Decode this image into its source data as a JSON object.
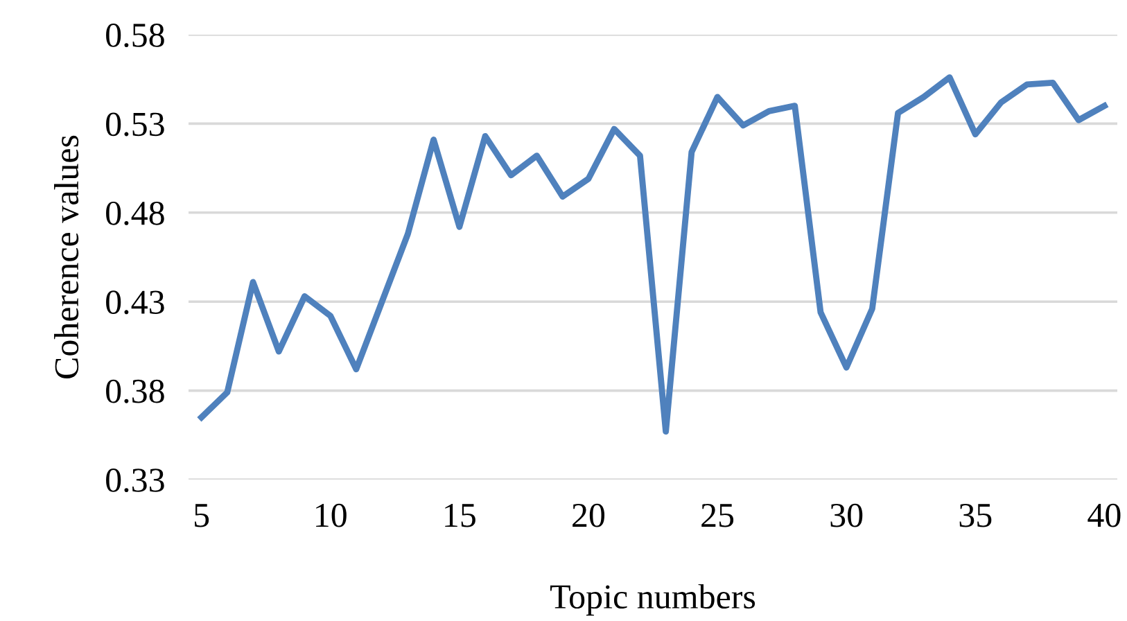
{
  "chart_data": {
    "type": "line",
    "xlabel": "Topic numbers",
    "ylabel": "Coherence values",
    "x": [
      5,
      6,
      7,
      8,
      9,
      10,
      11,
      12,
      13,
      14,
      15,
      16,
      17,
      18,
      19,
      20,
      21,
      22,
      23,
      24,
      25,
      26,
      27,
      28,
      29,
      30,
      31,
      32,
      33,
      34,
      35,
      36,
      37,
      38,
      39,
      40
    ],
    "series": [
      {
        "color": "#4f81bd",
        "values": [
          0.365,
          0.379,
          0.441,
          0.402,
          0.433,
          0.422,
          0.392,
          0.43,
          0.468,
          0.521,
          0.472,
          0.523,
          0.501,
          0.512,
          0.489,
          0.499,
          0.527,
          0.512,
          0.357,
          0.514,
          0.545,
          0.529,
          0.537,
          0.54,
          0.424,
          0.393,
          0.426,
          0.536,
          0.545,
          0.556,
          0.524,
          0.542,
          0.552,
          0.553,
          0.532,
          0.54
        ]
      }
    ],
    "xlim": [
      4.5,
      40.5
    ],
    "xticks": [
      5,
      10,
      15,
      20,
      25,
      30,
      35,
      40
    ],
    "ylim": [
      0.33,
      0.58
    ],
    "yticks": [
      {
        "value": 0.33,
        "label": "0.33"
      },
      {
        "value": 0.38,
        "label": "0.38"
      },
      {
        "value": 0.43,
        "label": "0.43"
      },
      {
        "value": 0.48,
        "label": "0.48"
      },
      {
        "value": 0.53,
        "label": "0.53"
      },
      {
        "value": 0.58,
        "label": "0.58"
      }
    ],
    "grid": "y",
    "marker": "none",
    "line_style": "solid",
    "legend": false
  }
}
